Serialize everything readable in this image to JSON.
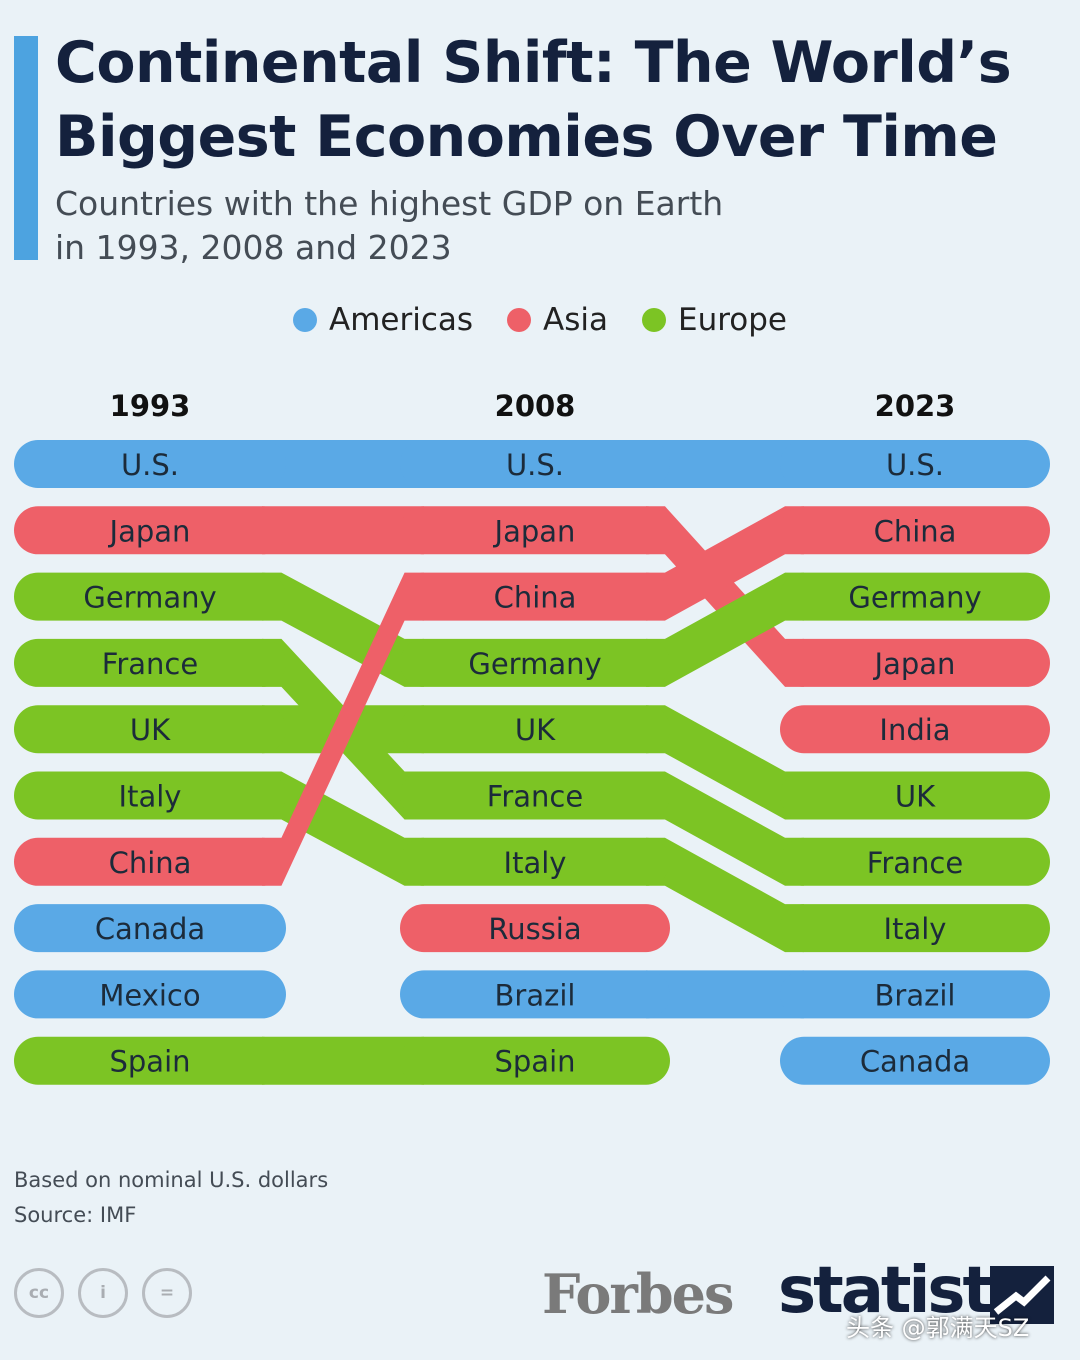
{
  "header": {
    "title": "Continental Shift: The World’s Biggest Economies Over Time",
    "subtitle_line1": "Countries with the highest GDP on Earth",
    "subtitle_line2": "in 1993, 2008 and 2023"
  },
  "legend": [
    {
      "label": "Americas",
      "color": "#5aa9e6"
    },
    {
      "label": "Asia",
      "color": "#ee6068"
    },
    {
      "label": "Europe",
      "color": "#7cc424"
    }
  ],
  "chart_data": {
    "type": "table",
    "years": [
      "1993",
      "2008",
      "2023"
    ],
    "rankings": {
      "1993": [
        "U.S.",
        "Japan",
        "Germany",
        "France",
        "UK",
        "Italy",
        "China",
        "Canada",
        "Mexico",
        "Spain"
      ],
      "2008": [
        "U.S.",
        "Japan",
        "China",
        "Germany",
        "UK",
        "France",
        "Italy",
        "Russia",
        "Brazil",
        "Spain"
      ],
      "2023": [
        "U.S.",
        "China",
        "Germany",
        "Japan",
        "India",
        "UK",
        "France",
        "Italy",
        "Brazil",
        "Canada"
      ]
    },
    "regions": {
      "U.S.": "Americas",
      "Canada": "Americas",
      "Mexico": "Americas",
      "Brazil": "Americas",
      "Japan": "Asia",
      "China": "Asia",
      "India": "Asia",
      "Russia": "Asia",
      "Germany": "Europe",
      "France": "Europe",
      "UK": "Europe",
      "Italy": "Europe",
      "Spain": "Europe"
    },
    "region_colors": {
      "Americas": "#5aa9e6",
      "Asia": "#ee6068",
      "Europe": "#7cc424"
    }
  },
  "footer": {
    "note": "Based on nominal U.S. dollars",
    "source": "Source: IMF",
    "cc_icons": [
      "cc-icon",
      "by-icon",
      "nd-icon"
    ],
    "cc_glyphs": [
      "cc",
      "i",
      "="
    ],
    "forbes_logo": "Forbes",
    "statista_logo": "statista",
    "watermark": "头条 @郭满天SZ"
  }
}
